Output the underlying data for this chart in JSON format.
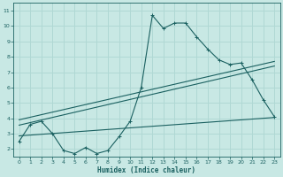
{
  "title": "",
  "xlabel": "Humidex (Indice chaleur)",
  "ylabel": "",
  "xlim": [
    -0.5,
    23.5
  ],
  "ylim": [
    1.5,
    11.5
  ],
  "yticks": [
    2,
    3,
    4,
    5,
    6,
    7,
    8,
    9,
    10,
    11
  ],
  "xticks": [
    0,
    1,
    2,
    3,
    4,
    5,
    6,
    7,
    8,
    9,
    10,
    11,
    12,
    13,
    14,
    15,
    16,
    17,
    18,
    19,
    20,
    21,
    22,
    23
  ],
  "background_color": "#c8e8e4",
  "grid_color": "#b0d8d4",
  "line_color": "#1a6060",
  "zigzag_x": [
    0,
    1,
    2,
    3,
    4,
    5,
    6,
    7,
    8,
    9,
    10,
    11,
    12,
    13,
    14,
    15,
    16,
    17,
    18,
    19,
    20,
    21,
    22,
    23
  ],
  "zigzag_y": [
    2.5,
    3.6,
    3.8,
    3.0,
    1.9,
    1.7,
    2.1,
    1.7,
    1.9,
    2.8,
    3.8,
    6.0,
    10.7,
    9.85,
    10.2,
    10.2,
    9.3,
    8.5,
    7.8,
    7.5,
    7.6,
    6.5,
    5.2,
    4.1
  ],
  "line1_x": [
    0,
    23
  ],
  "line1_y": [
    3.9,
    7.7
  ],
  "line2_x": [
    0,
    23
  ],
  "line2_y": [
    3.55,
    7.4
  ],
  "line3_x": [
    0,
    23
  ],
  "line3_y": [
    2.85,
    4.05
  ],
  "marker": "+"
}
